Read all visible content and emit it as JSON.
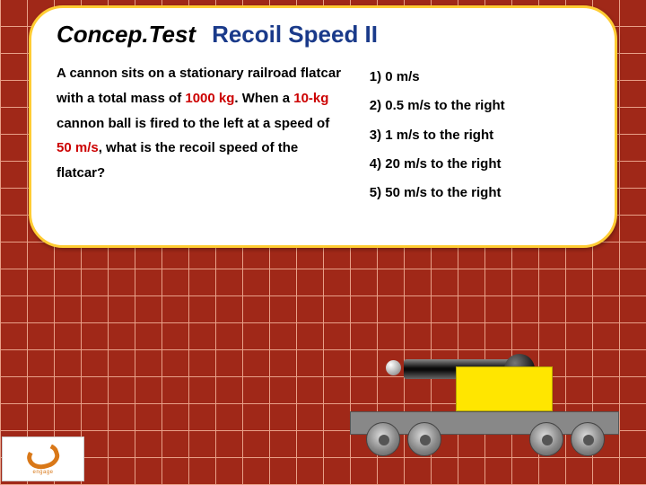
{
  "title": {
    "concep": "Concep.Test",
    "subtitle": "Recoil Speed II"
  },
  "question": {
    "parts": [
      {
        "t": "A cannon sits on a stationary railroad flatcar with a total mass of "
      },
      {
        "t": "1000 kg",
        "red": true
      },
      {
        "t": ".  When a "
      },
      {
        "t": "10-kg",
        "red": true
      },
      {
        "t": " cannon ball is fired to the left at a speed of "
      },
      {
        "t": "50 m/s",
        "red": true
      },
      {
        "t": ", what is the recoil speed of the flatcar?"
      }
    ]
  },
  "answers": [
    "1)  0 m/s",
    "2)  0.5 m/s to the right",
    "3)  1 m/s to the right",
    "4)  20 m/s to the right",
    "5)  50 m/s to the right"
  ],
  "colors": {
    "background": "#a02818",
    "grid_line": "#e8a088",
    "card_bg": "#ffffff",
    "card_border": "#ffcc33",
    "subtitle": "#1a3a8a",
    "highlight": "#cc0000",
    "cannon_base": "#ffe600",
    "flatcar": "#888888",
    "logo_accent": "#d97818"
  },
  "physics": {
    "flatcar_mass_kg": 1000,
    "ball_mass_kg": 10,
    "ball_speed_mps": 50,
    "ball_direction": "left"
  },
  "logo": {
    "label": "engage"
  }
}
